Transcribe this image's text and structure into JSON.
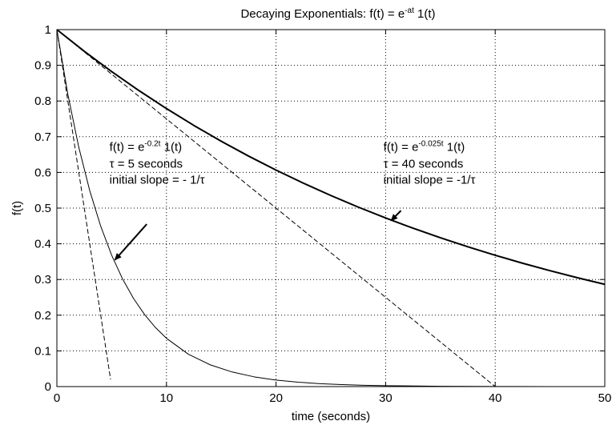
{
  "chart_data": {
    "type": "line",
    "title": "Decaying Exponentials: f(t) = e",
    "title_sup": "-at",
    "title_tail": " 1(t)",
    "xlabel": "time (seconds)",
    "ylabel": "f(t)",
    "xlim": [
      0,
      50
    ],
    "ylim": [
      0,
      1
    ],
    "x_ticks": [
      0,
      10,
      20,
      30,
      40,
      50
    ],
    "y_ticks": [
      0,
      0.1,
      0.2,
      0.3,
      0.4,
      0.5,
      0.6,
      0.7,
      0.8,
      0.9,
      1
    ],
    "grid": true,
    "series": [
      {
        "formula": "f(t) = e^(-0.2t) 1(t)",
        "style": "solid",
        "weight": "thin",
        "color": "#000000",
        "x": [
          0,
          1,
          2,
          3,
          4,
          5,
          6,
          7,
          8,
          9,
          10,
          12,
          14,
          16,
          18,
          20,
          22,
          24,
          26,
          28,
          30,
          35,
          40,
          45,
          50
        ],
        "y": [
          1.0,
          0.8187,
          0.6703,
          0.5488,
          0.4493,
          0.3679,
          0.3012,
          0.2466,
          0.2019,
          0.1653,
          0.1353,
          0.0907,
          0.0608,
          0.0408,
          0.0273,
          0.0183,
          0.0123,
          0.0082,
          0.0055,
          0.0037,
          0.0025,
          0.0009,
          0.0003,
          0.0001,
          0.0
        ]
      },
      {
        "formula": "f(t) = e^(-0.025t) 1(t)",
        "style": "solid",
        "weight": "thick",
        "color": "#000000",
        "x": [
          0,
          2.5,
          5,
          7.5,
          10,
          12.5,
          15,
          17.5,
          20,
          22.5,
          25,
          27.5,
          30,
          32.5,
          35,
          37.5,
          40,
          42.5,
          45,
          47.5,
          50
        ],
        "y": [
          1.0,
          0.9394,
          0.8825,
          0.829,
          0.7788,
          0.7316,
          0.6873,
          0.6456,
          0.6065,
          0.5698,
          0.5353,
          0.5028,
          0.4724,
          0.4437,
          0.4169,
          0.3916,
          0.3679,
          0.3456,
          0.3247,
          0.305,
          0.2865
        ]
      },
      {
        "formula": "initial slope tangent, tau = 5",
        "style": "dashed",
        "weight": "thin",
        "color": "#000000",
        "x": [
          0,
          4.9
        ],
        "y": [
          1.0,
          0.02
        ]
      },
      {
        "formula": "initial slope tangent, tau = 40",
        "style": "dashed",
        "weight": "thin",
        "color": "#000000",
        "x": [
          0,
          40
        ],
        "y": [
          1.0,
          0.0
        ]
      }
    ],
    "annotations": [
      {
        "id": "fast",
        "line1_pre": "f(t) = e",
        "line1_sup": "-0.2t",
        "line1_post": " 1(t)",
        "line2": "τ = 5 seconds",
        "line3": "initial slope = - 1/τ",
        "anchor": [
          4.8,
          0.66
        ],
        "arrow_from": [
          8.2,
          0.455
        ],
        "arrow_to": [
          5.3,
          0.355
        ]
      },
      {
        "id": "slow",
        "line1_pre": "f(t) = e",
        "line1_sup": "-0.025t",
        "line1_post": " 1(t)",
        "line2": "τ = 40 seconds",
        "line3": "initial slope = -1/τ",
        "anchor": [
          29.8,
          0.66
        ],
        "arrow_from": [
          31.4,
          0.493
        ],
        "arrow_to": [
          30.5,
          0.465
        ]
      }
    ]
  }
}
